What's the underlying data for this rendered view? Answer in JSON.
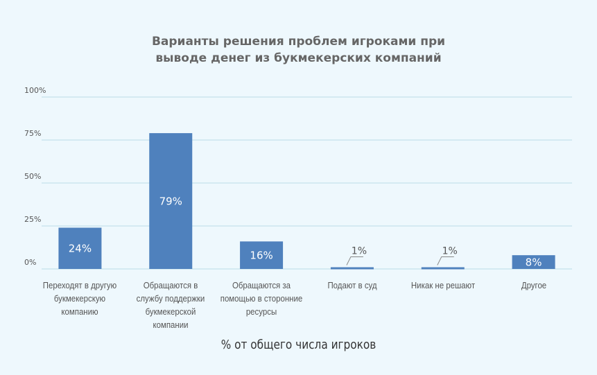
{
  "chart_data": {
    "type": "bar",
    "title": "Варианты решения проблем игроками при выводе денег из букмекерских компаний",
    "xlabel": "% от общего числа игроков",
    "categories": [
      "Переходят в другую букмекерскую компанию",
      "Обращаются в службу поддержки букмекерской компании",
      "Обращаются за помощью в сторонние ресурсы",
      "Подают в суд",
      "Никак не решают",
      "Другое"
    ],
    "values": [
      24,
      79,
      16,
      1,
      1,
      8
    ],
    "value_labels": [
      "24%",
      "79%",
      "16%",
      "1%",
      "1%",
      "8%"
    ],
    "color": "#4f81bd",
    "ylim": [
      0,
      100
    ],
    "yticks": [
      {
        "value": 0,
        "label": "0%"
      },
      {
        "value": 25,
        "label": "25%"
      },
      {
        "value": 50,
        "label": "50%"
      },
      {
        "value": 75,
        "label": "75%"
      },
      {
        "value": 100,
        "label": "100%"
      }
    ],
    "grid": true
  }
}
